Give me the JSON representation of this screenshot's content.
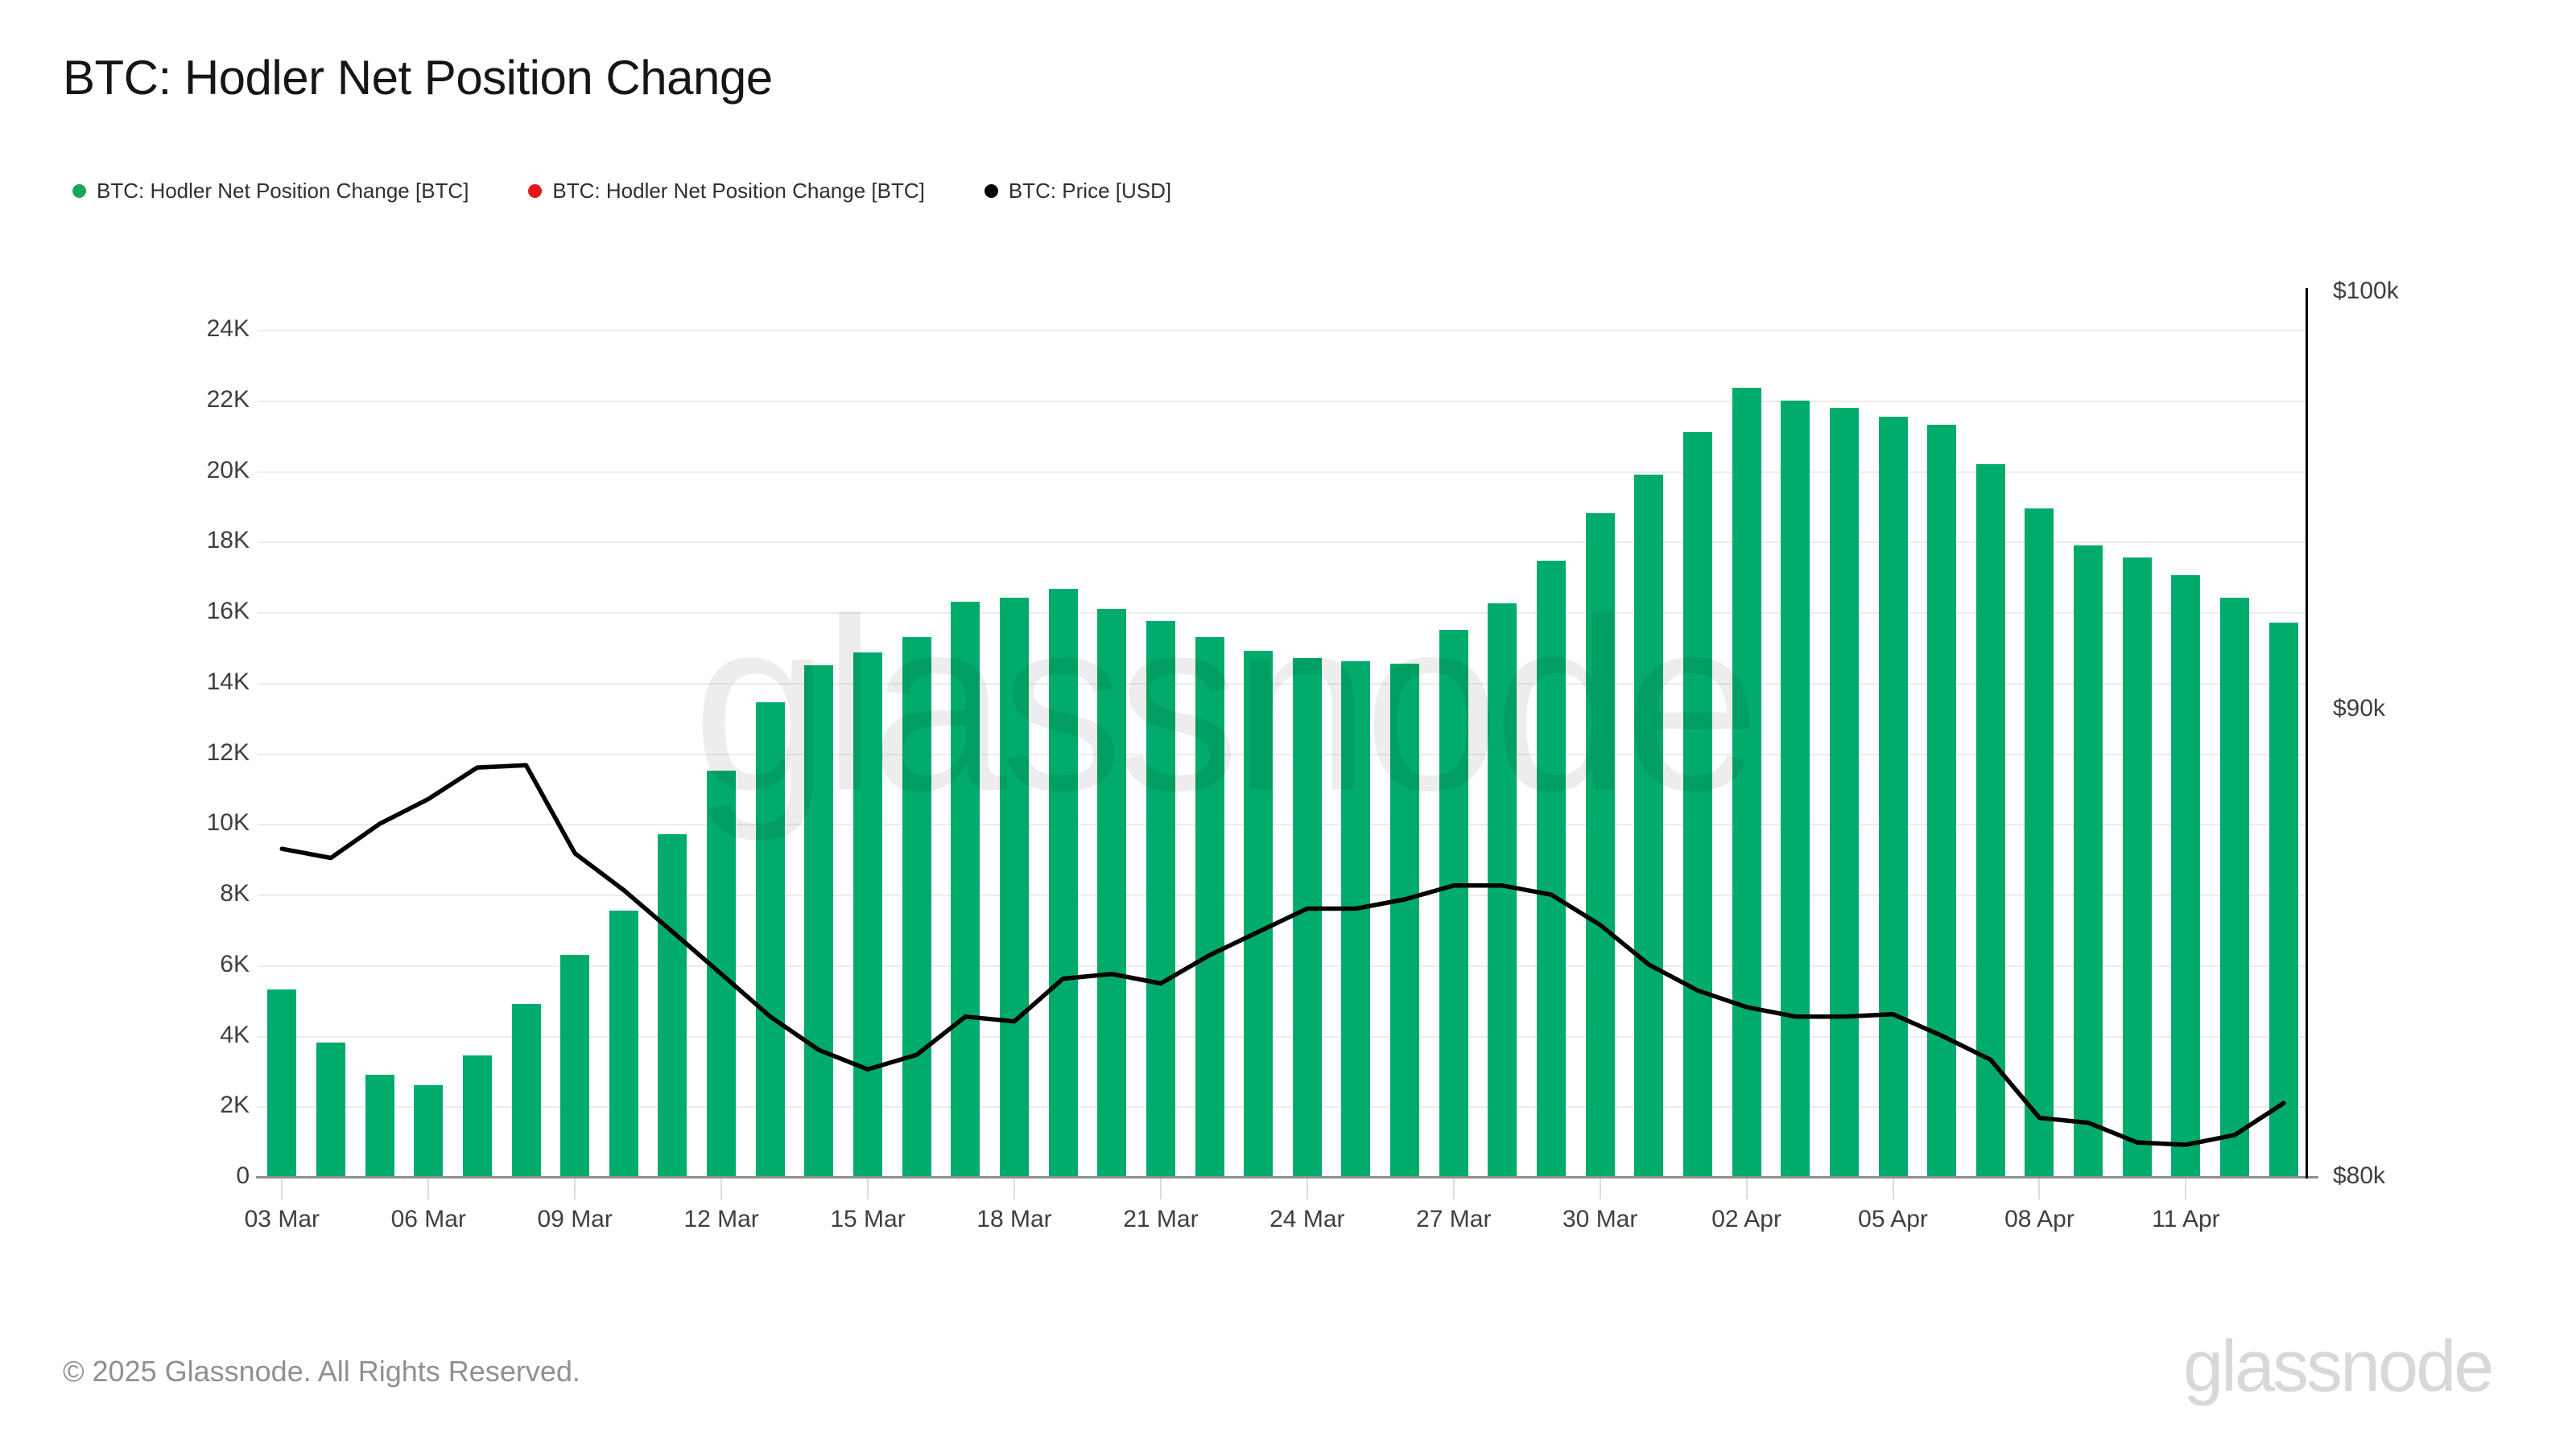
{
  "header": {
    "title": "BTC: Hodler Net Position Change"
  },
  "legend": [
    {
      "label": "BTC: Hodler Net Position Change [BTC]",
      "color": "#14a75c"
    },
    {
      "label": "BTC: Hodler Net Position Change [BTC]",
      "color": "#e81717"
    },
    {
      "label": "BTC: Price [USD]",
      "color": "#000000"
    }
  ],
  "chart_data": {
    "type": "bar",
    "title": "BTC: Hodler Net Position Change",
    "grid": "horizontal",
    "legend_position": "top-left",
    "categories": [
      "03 Mar",
      "04 Mar",
      "05 Mar",
      "06 Mar",
      "07 Mar",
      "08 Mar",
      "09 Mar",
      "10 Mar",
      "11 Mar",
      "12 Mar",
      "13 Mar",
      "14 Mar",
      "15 Mar",
      "16 Mar",
      "17 Mar",
      "18 Mar",
      "19 Mar",
      "20 Mar",
      "21 Mar",
      "22 Mar",
      "23 Mar",
      "24 Mar",
      "25 Mar",
      "26 Mar",
      "27 Mar",
      "28 Mar",
      "29 Mar",
      "30 Mar",
      "31 Mar",
      "01 Apr",
      "02 Apr",
      "03 Apr",
      "04 Apr",
      "05 Apr",
      "06 Apr",
      "07 Apr",
      "08 Apr",
      "09 Apr",
      "10 Apr",
      "11 Apr",
      "12 Apr",
      "13 Apr"
    ],
    "series": [
      {
        "name": "BTC: Hodler Net Position Change [BTC]",
        "type": "bar",
        "axis": "left",
        "unit": "BTC",
        "color": "#00ab6b",
        "values": [
          5300,
          3800,
          2900,
          2600,
          3450,
          4900,
          6300,
          7550,
          9700,
          11500,
          13450,
          14500,
          14850,
          15300,
          16300,
          16400,
          16650,
          16100,
          15750,
          15300,
          14900,
          14700,
          14600,
          14550,
          15500,
          16250,
          17450,
          18800,
          19900,
          21100,
          22350,
          22000,
          21800,
          21550,
          21300,
          20200,
          18950,
          17900,
          17550,
          17050,
          16400,
          15700
        ]
      },
      {
        "name": "BTC: Price [USD]",
        "type": "line",
        "axis": "right",
        "unit": "USD",
        "color": "#000000",
        "scale": "log",
        "values": [
          86900,
          86700,
          87450,
          88000,
          88700,
          88750,
          86800,
          86000,
          85100,
          84200,
          83300,
          82600,
          82200,
          82500,
          83300,
          83200,
          84100,
          84200,
          84000,
          84600,
          85100,
          85600,
          85600,
          85800,
          86100,
          86100,
          85900,
          85250,
          84400,
          83850,
          83500,
          83300,
          83300,
          83350,
          82900,
          82400,
          81200,
          81100,
          80700,
          80650,
          80850,
          81500
        ]
      }
    ],
    "left_axis": {
      "min": 0,
      "max": 24000,
      "ticks": [
        "24K",
        "22K",
        "20K",
        "18K",
        "16K",
        "14K",
        "12K",
        "10K",
        "8K",
        "6K",
        "4K",
        "2K",
        "0"
      ]
    },
    "right_axis": {
      "min": 80000,
      "max": 100000,
      "scale": "log",
      "ticks": [
        {
          "label": "$100k",
          "value": 100000
        },
        {
          "label": "$90k",
          "value": 90000
        },
        {
          "label": "$80k",
          "value": 80000
        }
      ]
    },
    "x_tick_labels": [
      "03 Mar",
      "06 Mar",
      "09 Mar",
      "12 Mar",
      "15 Mar",
      "18 Mar",
      "21 Mar",
      "24 Mar",
      "27 Mar",
      "30 Mar",
      "02 Apr",
      "05 Apr",
      "08 Apr",
      "11 Apr"
    ],
    "x_tick_every": 3
  },
  "theme": {
    "bar_green": "#00ab6b",
    "price_line_black": "#000000",
    "grid_color": "#ececec",
    "axis_text_color": "#3f3f3f",
    "baseline_color": "#8f8f8f",
    "tick_color": "#dcdcdc"
  },
  "watermark": {
    "text": "glassnode"
  },
  "footer": {
    "copyright": "© 2025 Glassnode. All Rights Reserved.",
    "brand": "glassnode"
  }
}
